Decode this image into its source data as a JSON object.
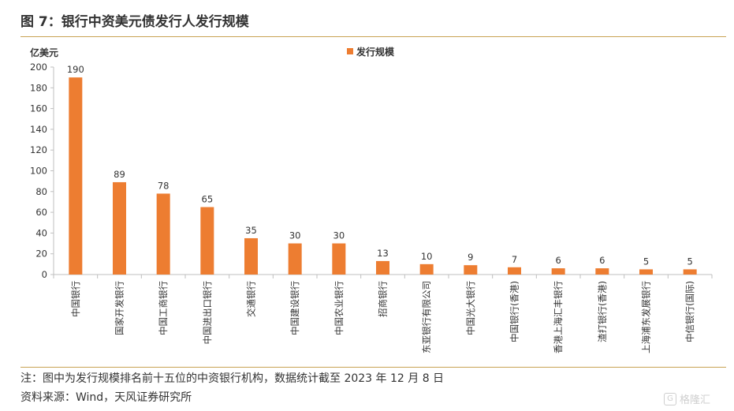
{
  "header": {
    "title": "图 7：银行中资美元债发行人发行规模"
  },
  "chart_data": {
    "type": "bar",
    "unit_label": "亿美元",
    "categories": [
      "中国银行",
      "国家开发银行",
      "中国工商银行",
      "中国进出口银行",
      "交通银行",
      "中国建设银行",
      "中国农业银行",
      "招商银行",
      "东亚银行有限公司",
      "中国光大银行",
      "中国银行(香港)",
      "香港上海汇丰银行",
      "渣打银行(香港)",
      "上海浦东发展银行",
      "中信银行(国际)"
    ],
    "series": [
      {
        "name": "发行规模",
        "values": [
          190,
          89,
          78,
          65,
          35,
          30,
          30,
          13,
          10,
          9,
          7,
          6,
          6,
          5,
          5
        ],
        "color": "#ed7d31"
      }
    ],
    "data_labels": [
      "190",
      "89",
      "78",
      "65",
      "35",
      "30",
      "30",
      "13",
      "10",
      "9",
      "7",
      "6",
      "6",
      "5",
      "5"
    ],
    "ylim": [
      0,
      200
    ],
    "yticks": [
      0,
      20,
      40,
      60,
      80,
      100,
      120,
      140,
      160,
      180,
      200
    ],
    "ytick_labels": [
      "0",
      "20",
      "40",
      "60",
      "80",
      "100",
      "120",
      "140",
      "160",
      "180",
      "200"
    ],
    "grid": false,
    "legend_position": "top-center"
  },
  "footer": {
    "note": "注：图中为发行规模排名前十五位的中资银行机构，数据统计截至 2023 年 12 月 8 日",
    "source": "资料来源：Wind，天风证券研究所"
  },
  "watermark": {
    "text": "格隆汇",
    "logo": "G"
  }
}
